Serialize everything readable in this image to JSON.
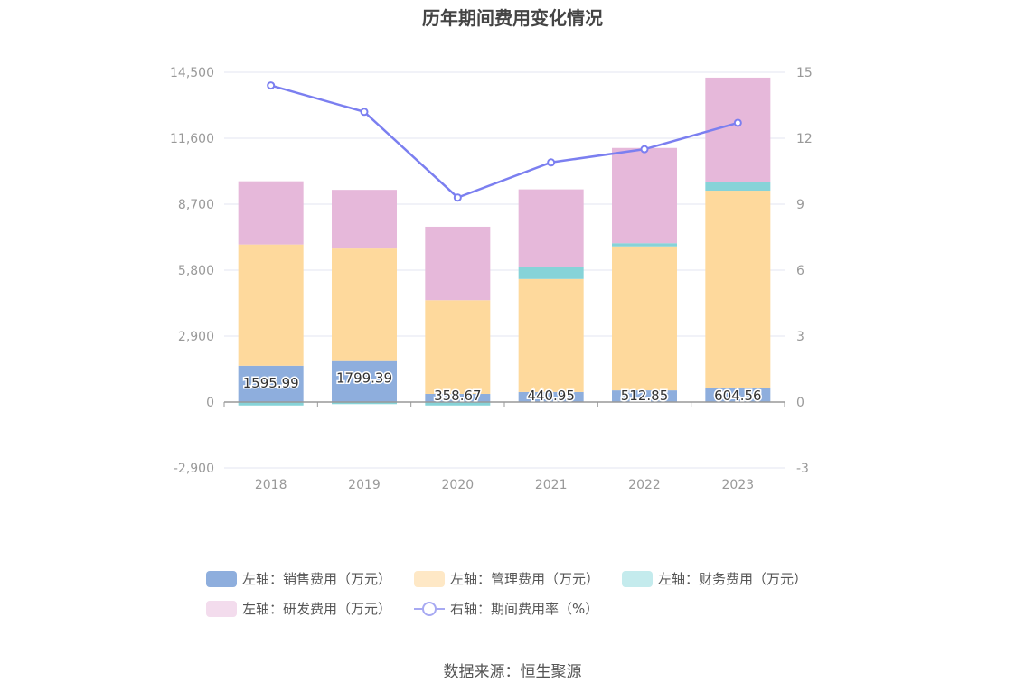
{
  "title": "历年期间费用变化情况",
  "source": "数据来源：恒生聚源",
  "colors": {
    "sales": "#8eaedd",
    "admin": "#fed99c",
    "finance": "#86d3d8",
    "rd": "#e6b8da",
    "rate": "#7b7ff0",
    "grid": "#e3e6f1",
    "axis": "#999999"
  },
  "legend": [
    {
      "label": "左轴：销售费用（万元）",
      "color": "#8eaedd",
      "kind": "bar"
    },
    {
      "label": "左轴：管理费用（万元）",
      "color": "#fee8c6",
      "kind": "bar"
    },
    {
      "label": "左轴：财务费用（万元）",
      "color": "#c4ebed",
      "kind": "bar"
    },
    {
      "label": "左轴：研发费用（万元）",
      "color": "#f3dced",
      "kind": "bar"
    },
    {
      "label": "右轴：期间费用率（%）",
      "color": "#a7a9f2",
      "kind": "line"
    }
  ],
  "chart_data": {
    "type": "bar",
    "stacked": true,
    "categories": [
      "2018",
      "2019",
      "2020",
      "2021",
      "2022",
      "2023"
    ],
    "y_left": {
      "ticks": [
        "14,500",
        "11,600",
        "8,700",
        "5,800",
        "2,900",
        "0",
        "-2,900"
      ],
      "ylim": [
        -2900,
        14500
      ]
    },
    "y_right": {
      "ticks": [
        "15",
        "12",
        "9",
        "6",
        "3",
        "0",
        "-3"
      ],
      "ylim": [
        -3,
        15
      ]
    },
    "series": [
      {
        "name": "左轴：销售费用（万元）",
        "axis": "left",
        "values": [
          1595.99,
          1799.39,
          358.67,
          440.95,
          512.85,
          604.56
        ],
        "labels": [
          "1595.99",
          "1799.39",
          "358.67",
          "440.95",
          "512.85",
          "604.56"
        ]
      },
      {
        "name": "左轴：管理费用（万元）",
        "axis": "left",
        "values": [
          5330,
          4950,
          4120,
          4970,
          6330,
          8690
        ]
      },
      {
        "name": "左轴：财务费用（万元）",
        "axis": "left",
        "values": [
          -150,
          -90,
          -150,
          540,
          140,
          360
        ]
      },
      {
        "name": "左轴：研发费用（万元）",
        "axis": "left",
        "values": [
          2780,
          2580,
          3230,
          3400,
          4190,
          4610
        ]
      },
      {
        "name": "右轴：期间费用率（%）",
        "axis": "right",
        "type": "line",
        "values": [
          14.4,
          13.2,
          9.3,
          10.9,
          11.5,
          12.7
        ]
      }
    ],
    "grid": true,
    "legend_position": "bottom"
  }
}
